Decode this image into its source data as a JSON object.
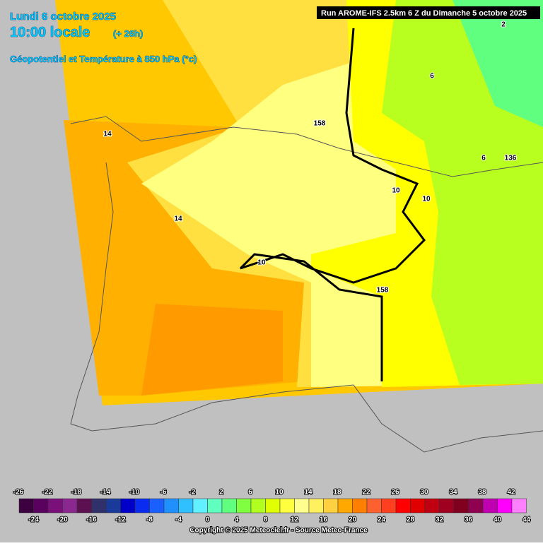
{
  "header": {
    "date": "Lundi 6 octobre 2025",
    "time": "10:00 locale",
    "lead": "(+ 26h)",
    "field": "Géopotentiel et Température à 850 hPa (°c)"
  },
  "run": "Run AROME-IFS 2.5km 6 Z du Dimanche 5 octobre 2025",
  "map_labels": [
    "14",
    "14",
    "158",
    "10",
    "10",
    "10",
    "158",
    "6",
    "6",
    "2",
    "136"
  ],
  "legend": {
    "values": [
      -26,
      -24,
      -22,
      -20,
      -18,
      -16,
      -14,
      -12,
      -10,
      -8,
      -6,
      -4,
      -2,
      0,
      2,
      4,
      6,
      8,
      10,
      12,
      14,
      16,
      18,
      20,
      22,
      24,
      26,
      28,
      30,
      32,
      34,
      36,
      38,
      40,
      42,
      44
    ],
    "colors": [
      "#3c0040",
      "#5a005f",
      "#7a107a",
      "#8a2890",
      "#5c1050",
      "#30306a",
      "#1a3a9a",
      "#0000c8",
      "#0a2cf0",
      "#1a60ff",
      "#2090ff",
      "#30c0ff",
      "#60f0ff",
      "#60ffc0",
      "#60ff80",
      "#80ff40",
      "#b0ff20",
      "#e0ff00",
      "#ffff40",
      "#ffff90",
      "#fff060",
      "#ffd040",
      "#ffa800",
      "#ff8000",
      "#ff6030",
      "#ff4020",
      "#ff0000",
      "#e00000",
      "#c00010",
      "#a00020",
      "#800020",
      "#900050",
      "#c000b0",
      "#ff00ff",
      "#ff80ff"
    ]
  },
  "copyright": "Copyright © 2025 Meteociel.fr - Source Meteo-France"
}
